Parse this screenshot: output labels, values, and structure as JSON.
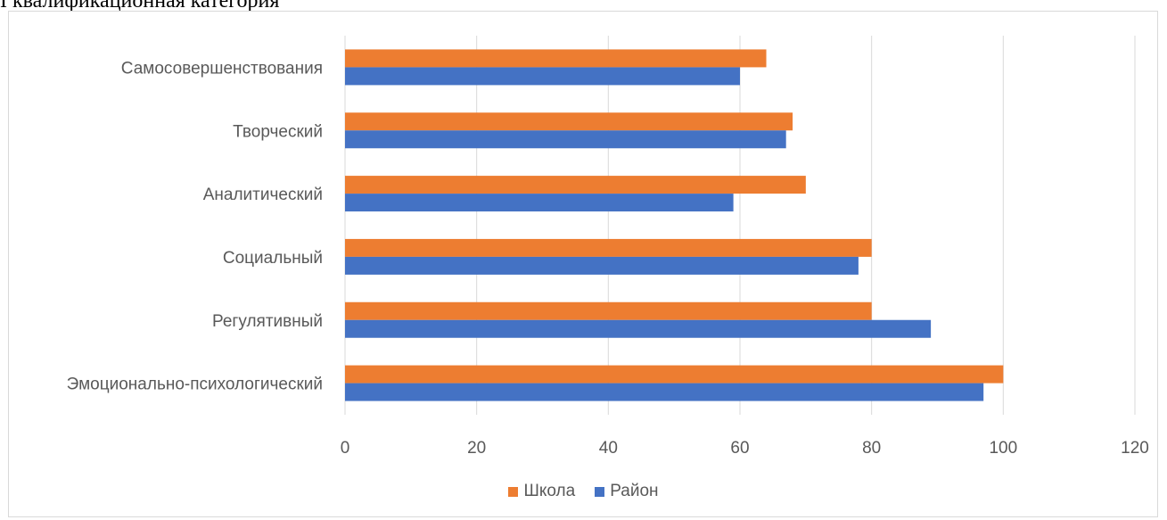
{
  "heading": "I квалификационная категория",
  "chart_data": {
    "type": "bar",
    "orientation": "horizontal",
    "categories": [
      "Самосовершенствования",
      "Творческий",
      "Аналитический",
      "Социальный",
      "Регулятивный",
      "Эмоционально-психологический"
    ],
    "series": [
      {
        "name": "Школа",
        "color": "#ED7D31",
        "values": [
          64,
          68,
          70,
          80,
          80,
          100
        ]
      },
      {
        "name": "Район",
        "color": "#4472C4",
        "values": [
          60,
          67,
          59,
          78,
          89,
          97
        ]
      }
    ],
    "xlim": [
      0,
      120
    ],
    "xticks": [
      "0",
      "20",
      "40",
      "60",
      "80",
      "100",
      "120"
    ],
    "grid": true,
    "legend_position": "bottom"
  }
}
